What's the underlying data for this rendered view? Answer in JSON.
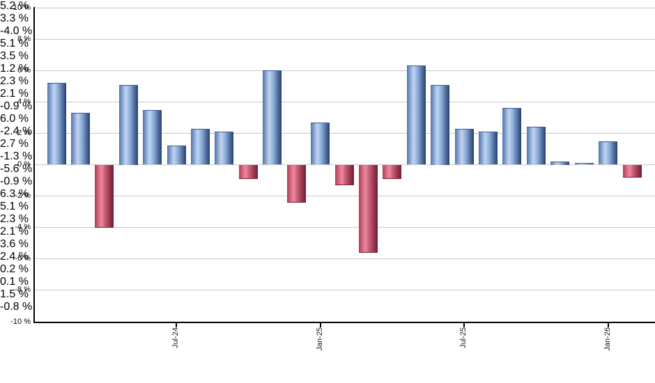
{
  "chart_data": {
    "type": "bar",
    "title": "",
    "xlabel": "",
    "ylabel": "",
    "ylim": [
      -10,
      10
    ],
    "grid": true,
    "values": [
      5.2,
      3.3,
      -4.0,
      5.1,
      3.5,
      1.2,
      2.3,
      2.1,
      -0.9,
      6.0,
      -2.4,
      2.7,
      -1.3,
      -5.6,
      -0.9,
      6.3,
      5.1,
      2.3,
      2.1,
      3.6,
      2.4,
      0.2,
      0.1,
      1.5,
      -0.8
    ],
    "bar_labels": [
      "5.2 %",
      "3.3 %",
      "-4.0 %",
      "5.1 %",
      "3.5 %",
      "1.2 %",
      "2.3 %",
      "2.1 %",
      "-0.9 %",
      "6.0 %",
      "-2.4 %",
      "2.7 %",
      "-1.3 %",
      "-5.6 %",
      "-0.9 %",
      "6.3 %",
      "5.1 %",
      "2.3 %",
      "2.1 %",
      "3.6 %",
      "2.4 %",
      "0.2 %",
      "0.1 %",
      "1.5 %",
      "-0.8 %"
    ],
    "x_ticks": [
      {
        "index": 5,
        "label": "Jul-24"
      },
      {
        "index": 11,
        "label": "Jan-25"
      },
      {
        "index": 17,
        "label": "Jul-25"
      },
      {
        "index": 23,
        "label": "Jan-26"
      }
    ],
    "y_ticks": [
      {
        "value": 10,
        "label": "10 %"
      },
      {
        "value": 8,
        "label": "8 %"
      },
      {
        "value": 6,
        "label": "6 %"
      },
      {
        "value": 4,
        "label": "4 %"
      },
      {
        "value": 2,
        "label": "2 %"
      },
      {
        "value": 0,
        "label": "0 %"
      },
      {
        "value": -2,
        "label": "-2 %"
      },
      {
        "value": -4,
        "label": "-4 %"
      },
      {
        "value": -6,
        "label": "-6 %"
      },
      {
        "value": -8,
        "label": "-8 %"
      },
      {
        "value": -10,
        "label": "-10 %"
      }
    ],
    "colors": {
      "positive_bar_dark": "#24406c",
      "positive_bar_light": "#c3d5f1",
      "positive_bar_mid": "#4f74ab",
      "negative_bar_dark": "#6f1b32",
      "negative_bar_light": "#ec8ba0",
      "negative_bar_mid": "#b43b58",
      "gridline": "#c9c9c9",
      "axis": "#000000",
      "label_text": "#000000"
    },
    "legend": null
  }
}
